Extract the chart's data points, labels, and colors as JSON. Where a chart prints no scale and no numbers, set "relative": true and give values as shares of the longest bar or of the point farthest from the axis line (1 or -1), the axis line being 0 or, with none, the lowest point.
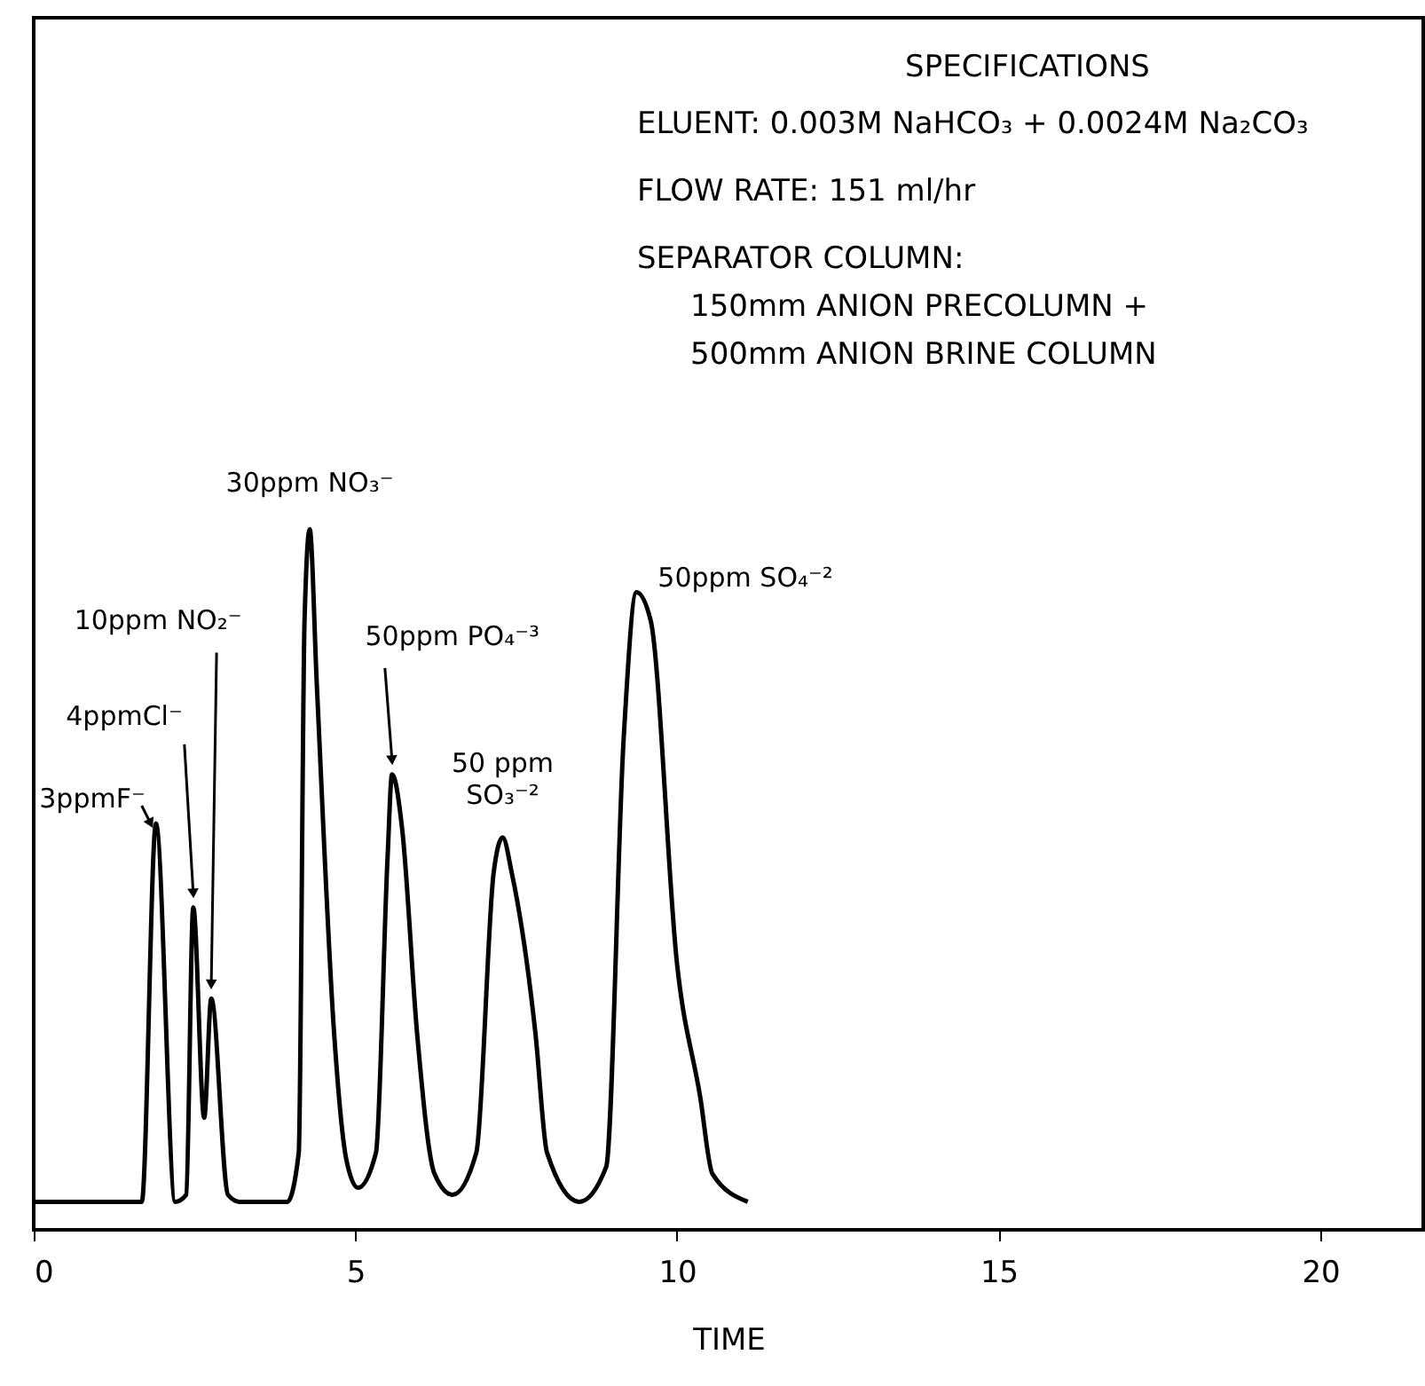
{
  "chart_data": {
    "type": "line",
    "relative": true,
    "xlabel": "TIME",
    "xlim": [
      0,
      21.6
    ],
    "xticks": [
      0,
      5,
      10,
      15,
      20
    ],
    "x": [
      0,
      1.68,
      1.9,
      2.2,
      2.37,
      2.48,
      2.65,
      2.76,
      3.02,
      3.2,
      3.94,
      4.12,
      4.21,
      4.29,
      4.4,
      4.67,
      4.86,
      5.04,
      5.32,
      5.5,
      5.57,
      5.73,
      5.96,
      6.23,
      6.51,
      6.88,
      7.15,
      7.29,
      7.43,
      7.8,
      7.98,
      8.48,
      8.9,
      9.17,
      9.37,
      9.59,
      10.0,
      10.36,
      10.55,
      11.1
    ],
    "series": [
      {
        "color": "#000000",
        "values": [
          0.04,
          0.04,
          0.58,
          0.04,
          0.05,
          0.46,
          0.16,
          0.33,
          0.05,
          0.04,
          0.04,
          0.11,
          0.87,
          1.0,
          0.78,
          0.28,
          0.1,
          0.06,
          0.11,
          0.53,
          0.65,
          0.57,
          0.28,
          0.08,
          0.05,
          0.11,
          0.51,
          0.56,
          0.51,
          0.28,
          0.11,
          0.04,
          0.09,
          0.7,
          0.91,
          0.87,
          0.38,
          0.19,
          0.08,
          0.04
        ]
      }
    ],
    "annotations": [
      {
        "text": "3ppmF⁻",
        "x": 1.9,
        "y": 0.58
      },
      {
        "text": "4ppmCl⁻",
        "x": 2.48,
        "y": 0.46
      },
      {
        "text": "10ppm NO₂⁻",
        "x": 2.76,
        "y": 0.33
      },
      {
        "text": "30ppm NO₃⁻",
        "x": 4.29,
        "y": 1.0
      },
      {
        "text": "50ppm PO₄⁻³",
        "x": 5.57,
        "y": 0.65
      },
      {
        "text": "50 ppm SO₃⁻²",
        "x": 7.29,
        "y": 0.56
      },
      {
        "text": "50ppm SO₄⁻²",
        "x": 9.37,
        "y": 0.91
      },
      "SPECIFICATIONS",
      "ELUENT: 0.003M NaHCO₃ + 0.0024M Na₂CO₃",
      "FLOW RATE: 151 ml/hr",
      "SEPARATOR COLUMN:",
      "150mm ANION PRECOLUMN +",
      "500mm ANION BRINE COLUMN"
    ]
  }
}
